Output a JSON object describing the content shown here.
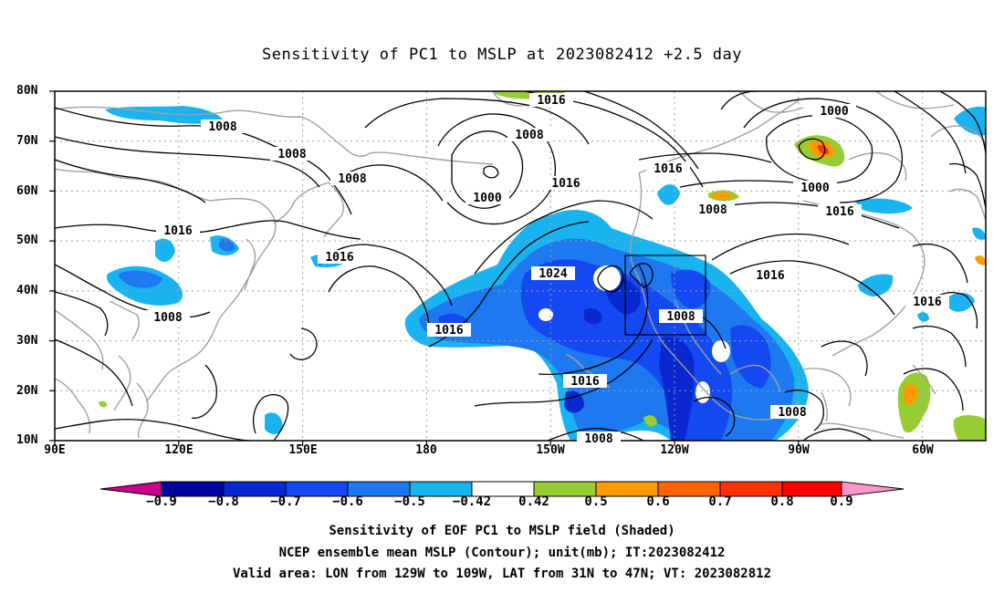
{
  "title": "Sensitivity of PC1 to MSLP at 2023082412 +2.5 day",
  "lat_labels": [
    "80N",
    "70N",
    "60N",
    "50N",
    "40N",
    "30N",
    "20N",
    "10N"
  ],
  "lon_labels": [
    "90E",
    "120E",
    "150E",
    "180",
    "150W",
    "120W",
    "90W",
    "60W"
  ],
  "contour_labels": [
    {
      "text": "1016",
      "key": "a"
    },
    {
      "text": "1008",
      "key": "b"
    },
    {
      "text": "1008",
      "key": "c"
    },
    {
      "text": "1008",
      "key": "d"
    },
    {
      "text": "1000",
      "key": "e"
    },
    {
      "text": "1016",
      "key": "f"
    },
    {
      "text": "1008",
      "key": "g"
    },
    {
      "text": "1016",
      "key": "h"
    },
    {
      "text": "1000",
      "key": "i"
    },
    {
      "text": "1000",
      "key": "j"
    },
    {
      "text": "1008",
      "key": "k"
    },
    {
      "text": "1016",
      "key": "l"
    },
    {
      "text": "1016",
      "key": "m"
    },
    {
      "text": "1016",
      "key": "n"
    },
    {
      "text": "1024",
      "key": "o"
    },
    {
      "text": "1016",
      "key": "p"
    },
    {
      "text": "1008",
      "key": "q"
    },
    {
      "text": "1016",
      "key": "r"
    },
    {
      "text": "1008",
      "key": "s"
    },
    {
      "text": "1016",
      "key": "t"
    },
    {
      "text": "1016",
      "key": "u"
    },
    {
      "text": "1008",
      "key": "v"
    },
    {
      "text": "1008",
      "key": "w"
    }
  ],
  "colorbar": {
    "labels": [
      "−0.9",
      "−0.8",
      "−0.7",
      "−0.6",
      "−0.5",
      "−0.42",
      "0.42",
      "0.5",
      "0.6",
      "0.7",
      "0.8",
      "0.9"
    ],
    "colors": [
      "#c8008c",
      "#0000a0",
      "#0a28d0",
      "#1448f0",
      "#1e78f0",
      "#19b4f0",
      "#ffffff",
      "#96cd32",
      "#ff9a00",
      "#ff6400",
      "#ff3200",
      "#ff0000",
      "#ff96c8"
    ]
  },
  "captions": [
    "Sensitivity of EOF PC1 to MSLP field (Shaded)",
    "NCEP ensemble mean MSLP (Contour); unit(mb); IT:2023082412",
    "Valid area: LON from 129W to 109W, LAT from 31N to 47N; VT: 2023082812"
  ]
}
